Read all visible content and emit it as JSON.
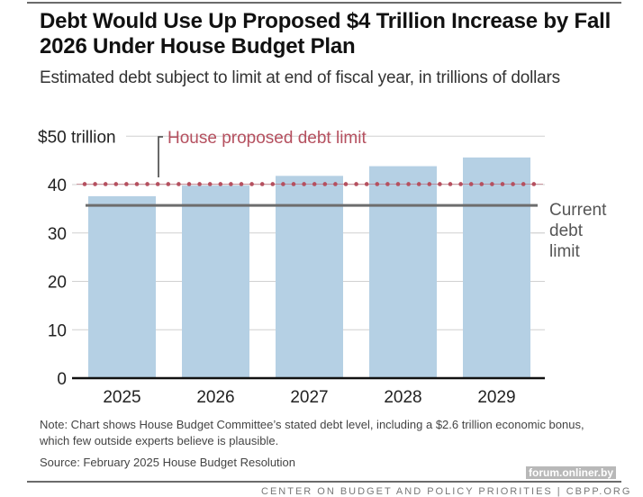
{
  "title": "Debt Would Use Up Proposed $4 Trillion Increase by Fall 2026 Under House Budget Plan",
  "subtitle": "Estimated debt subject to limit at end of fiscal year, in trillions of dollars",
  "note": "Note:  Chart shows House Budget Committee’s stated debt level, including a $2.6 trillion economic bonus, which few outside experts believe is plausible.",
  "source": "Source: February 2025 House Budget Resolution",
  "footer": "CENTER ON BUDGET AND POLICY PRIORITIES | CBPP.ORG",
  "watermark": "forum.onliner.by",
  "colors": {
    "bar": "#b5d0e4",
    "proposed_limit": "#b5505f",
    "current_limit": "#6d6d6d",
    "grid": "#d0d0d0",
    "axis": "#111111"
  },
  "chart_data": {
    "type": "bar",
    "title": "Debt Would Use Up Proposed $4 Trillion Increase by Fall 2026 Under House Budget Plan",
    "subtitle": "Estimated debt subject to limit at end of fiscal year, in trillions of dollars",
    "xlabel": "",
    "ylabel": "",
    "categories": [
      "2025",
      "2026",
      "2027",
      "2028",
      "2029"
    ],
    "series": [
      {
        "name": "Estimated debt subject to limit",
        "values": [
          37.6,
          39.8,
          41.8,
          43.8,
          45.6
        ]
      }
    ],
    "ylim": [
      0,
      50
    ],
    "yticks": [
      0,
      10,
      20,
      30,
      40,
      50
    ],
    "ytick_labels": [
      "0",
      "10",
      "20",
      "30",
      "40",
      "$50 trillion"
    ],
    "grid": true,
    "reference_lines": [
      {
        "name": "House proposed debt limit",
        "label": "House proposed debt limit",
        "value": 40.1,
        "style": "dotted"
      },
      {
        "name": "Current debt limit",
        "label": "Current debt limit",
        "label_lines": [
          "Current",
          "debt",
          "limit"
        ],
        "value": 35.7,
        "style": "solid"
      }
    ]
  }
}
